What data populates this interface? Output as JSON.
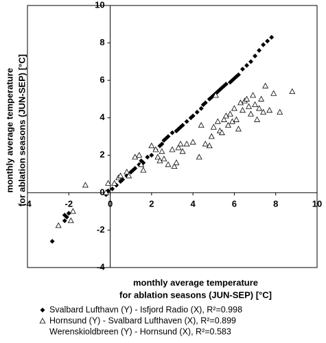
{
  "chart_data": {
    "type": "scatter",
    "xlabel": [
      "monthly average temperature",
      "for ablation seasons (JUN-SEP) [°C]"
    ],
    "ylabel": [
      "monthly average temperature",
      "for ablation seasons (JUN-SEP) [°C]"
    ],
    "xlim": [
      -4,
      10
    ],
    "ylim": [
      -4,
      10
    ],
    "xticks": [
      -4,
      -2,
      0,
      2,
      4,
      6,
      8,
      10
    ],
    "yticks": [
      -4,
      -2,
      0,
      2,
      4,
      6,
      8,
      10
    ],
    "series": [
      {
        "name": "Svalbard Lufthavn (Y) - Isfjord Radio (X), R²=0.998",
        "color": "#000000",
        "marker": "diamond",
        "x": [
          -2.8,
          -2.2,
          -2.1,
          -2.0,
          -2.2,
          -0.2,
          -0.1,
          0.1,
          0.3,
          0.5,
          0.8,
          1.0,
          1.2,
          1.4,
          1.5,
          1.8,
          2.0,
          2.2,
          2.4,
          2.5,
          2.6,
          2.8,
          3.0,
          3.2,
          3.3,
          3.5,
          3.7,
          3.9,
          4.0,
          4.2,
          4.4,
          4.6,
          4.8,
          5.0,
          5.1,
          5.3,
          5.5,
          5.6,
          5.8,
          6.0,
          6.2,
          6.4,
          6.6,
          6.8,
          7.0,
          7.2,
          7.4,
          7.6,
          7.8,
          1.1,
          2.7,
          3.4,
          4.5,
          5.2,
          5.9,
          6.1,
          0.6,
          1.6,
          4.9,
          5.4
        ],
        "values": [
          -2.6,
          -1.5,
          -1.3,
          -1.1,
          -1.2,
          -0.1,
          0.1,
          0.2,
          0.4,
          0.6,
          0.9,
          1.1,
          1.3,
          1.5,
          1.7,
          1.9,
          2.0,
          2.3,
          2.5,
          2.6,
          2.8,
          3.0,
          3.2,
          3.3,
          3.4,
          3.6,
          3.8,
          4.0,
          4.1,
          4.3,
          4.5,
          4.8,
          5.0,
          5.2,
          5.3,
          5.5,
          5.7,
          5.8,
          5.9,
          6.1,
          6.3,
          6.6,
          6.8,
          7.0,
          7.3,
          7.6,
          7.9,
          8.1,
          8.3,
          1.2,
          2.9,
          3.5,
          4.7,
          5.4,
          6.0,
          6.2,
          0.7,
          1.6,
          5.1,
          5.6
        ]
      },
      {
        "name": "Hornsund (Y) - Svalbard Lufthaven (X), R²=0.899",
        "color": "#000000",
        "marker": "triangle",
        "x": [
          -2.5,
          -1.9,
          -1.8,
          -1.2,
          -0.2,
          -0.1,
          0.2,
          0.4,
          0.5,
          0.8,
          0.9,
          1.2,
          1.4,
          1.5,
          1.6,
          2.0,
          2.2,
          2.3,
          2.4,
          2.5,
          2.6,
          2.8,
          3.0,
          3.1,
          3.2,
          3.3,
          3.4,
          3.5,
          3.7,
          4.0,
          4.3,
          4.6,
          4.8,
          4.9,
          5.0,
          5.2,
          5.3,
          5.4,
          5.5,
          5.6,
          5.7,
          5.8,
          5.9,
          6.0,
          6.1,
          6.2,
          6.3,
          6.4,
          6.5,
          6.6,
          6.7,
          6.8,
          6.9,
          7.0,
          7.1,
          7.2,
          7.3,
          7.4,
          7.5,
          7.7,
          7.9,
          8.2,
          8.8,
          5.1,
          4.4
        ],
        "values": [
          -1.76,
          -1.5,
          -1.0,
          0.4,
          0.0,
          0.5,
          0.5,
          0.8,
          0.9,
          1.1,
          0.9,
          1.9,
          2.0,
          1.5,
          1.2,
          2.5,
          2.3,
          1.9,
          1.7,
          2.2,
          1.8,
          1.5,
          2.3,
          1.4,
          1.6,
          2.4,
          2.6,
          2.2,
          2.6,
          2.7,
          1.9,
          2.6,
          2.5,
          3.0,
          3.5,
          3.8,
          3.3,
          3.2,
          3.9,
          4.1,
          3.6,
          4.2,
          3.8,
          4.5,
          3.9,
          3.4,
          4.8,
          4.4,
          4.9,
          5.0,
          4.6,
          4.2,
          5.2,
          4.7,
          3.9,
          4.5,
          5.0,
          4.3,
          5.7,
          4.4,
          5.3,
          4.3,
          5.4,
          5.2,
          3.6
        ]
      },
      {
        "name": "Werenskioldbreen (Y) - Hornsund (X), R²=0.583",
        "color": "#000000",
        "marker": "none",
        "x": [],
        "values": []
      }
    ]
  }
}
